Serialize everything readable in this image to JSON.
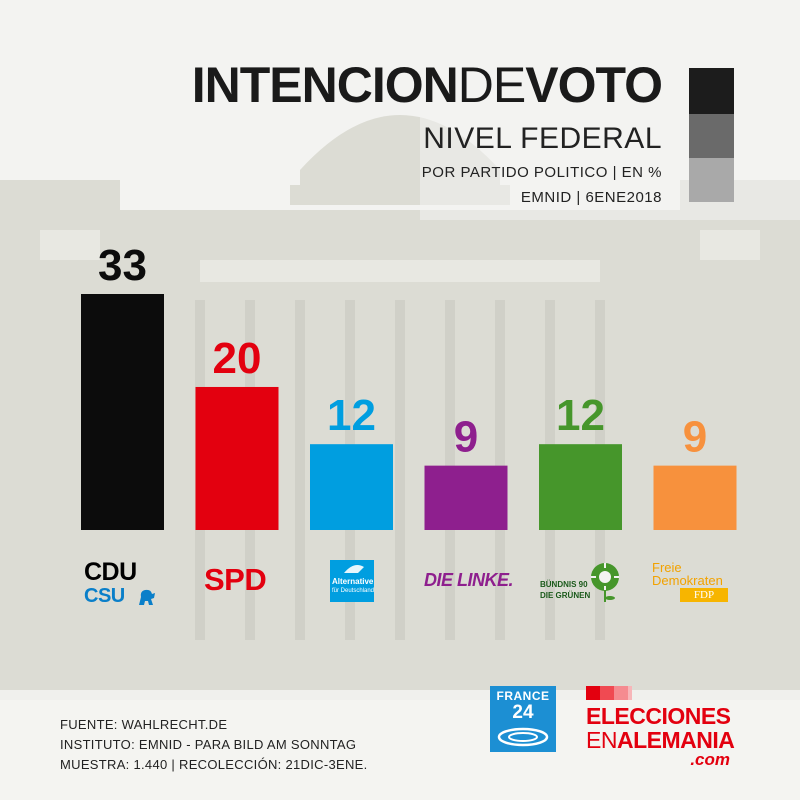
{
  "header": {
    "title_bold_1": "INTENCION",
    "title_light": "DE",
    "title_bold_2": "VOTO",
    "subtitle": "NIVEL FEDERAL",
    "meta_line_1": "POR PARTIDO POLITICO | EN %",
    "meta_line_2": "EMNID | 6ENE2018"
  },
  "chart_data": {
    "type": "bar",
    "title": "INTENCIONDEVOTO",
    "subtitle": "NIVEL FEDERAL",
    "xlabel": "",
    "ylabel": "",
    "ylim": [
      0,
      33
    ],
    "grid": false,
    "categories": [
      "CDU/CSU",
      "SPD",
      "AfD",
      "DIE LINKE",
      "GRÜNE",
      "FDP"
    ],
    "values": [
      33,
      20,
      12,
      9,
      12,
      9
    ],
    "colors": [
      "#0c0c0c",
      "#e3000f",
      "#009ee0",
      "#8e1f8e",
      "#46962b",
      "#f7913d"
    ],
    "value_labels": [
      "33",
      "20",
      "12",
      "9",
      "12",
      "9"
    ]
  },
  "logos": {
    "cdu": "CDU",
    "csu": "CSU",
    "spd": "SPD",
    "afd_line_1": "Alternative",
    "afd_line_2": "für Deutschland",
    "linke": "DIE LINKE.",
    "gruene_line_1": "BÜNDNIS 90",
    "gruene_line_2": "DIE GRÜNEN",
    "fdp_line_1": "Freie",
    "fdp_line_2": "Demokraten",
    "fdp_line_3": "FDP"
  },
  "footer": {
    "line_1": "FUENTE: WAHLRECHT.DE",
    "line_2": "INSTITUTO: EMNID - PARA BILD AM SONNTAG",
    "line_3": "MUESTRA: 1.440 | RECOLECCIÓN: 21DIC-3ENE."
  },
  "brands": {
    "france24_line_1": "FRANCE",
    "france24_line_2": "24",
    "elecciones_line_1": "ELECCIONES",
    "elecciones_line_2_light": "EN",
    "elecciones_line_2_bold": "ALEMANIA",
    "elecciones_line_3": ".com"
  },
  "colors": {
    "accent_black": "#0c0c0c",
    "brand_red": "#e3000f",
    "france24_blue": "#1c8fd3"
  }
}
